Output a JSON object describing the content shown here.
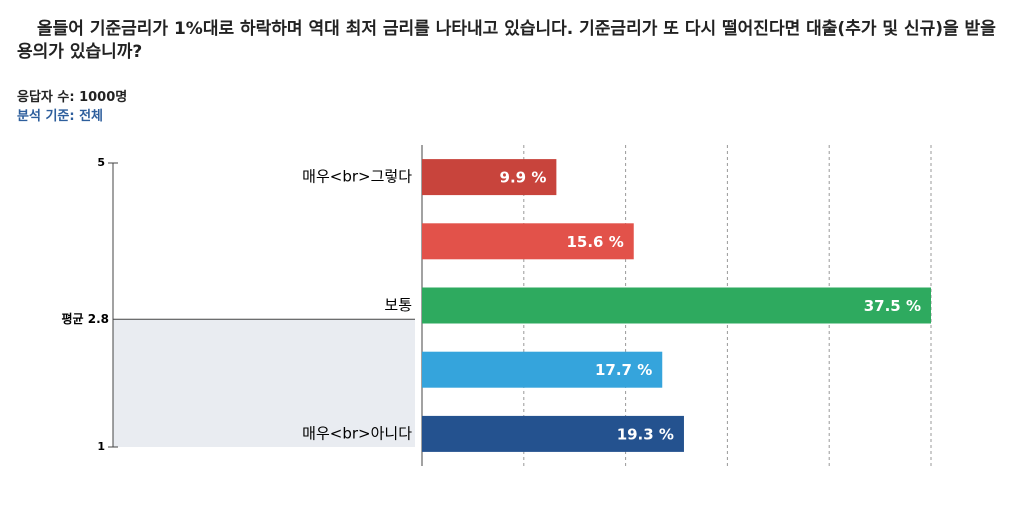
{
  "header": {
    "question": "올들어 기준금리가 1%대로 하락하며 역대 최저 금리를 나타내고 있습니다. 기준금리가 또 다시 떨어진다면 대출(추가 및 신규)을 받을 용의가 있습니까?",
    "respondents": "응답자 수: 1000명",
    "basis": "분석 기준: 전체"
  },
  "chart_data": {
    "type": "bar",
    "orientation": "horizontal",
    "categories": [
      "매우<br>그렇다",
      null,
      "보통",
      null,
      "매우<br>아니다"
    ],
    "values": [
      9.9,
      15.6,
      37.5,
      17.7,
      19.3
    ],
    "value_labels": [
      "9.9 %",
      "15.6 %",
      "37.5 %",
      "17.7 %",
      "19.3 %"
    ],
    "colors": [
      "#c8443c",
      "#e2524a",
      "#2eaa5f",
      "#35a4dc",
      "#24528f"
    ],
    "xlim": [
      0,
      37.5
    ],
    "xticks": [
      0,
      7.5,
      15,
      22.5,
      30,
      37.5
    ],
    "grid": true,
    "scale": {
      "ylim": [
        1,
        5
      ],
      "yticks": [
        1,
        5
      ],
      "average_label": "평균",
      "average": 2.8
    }
  }
}
